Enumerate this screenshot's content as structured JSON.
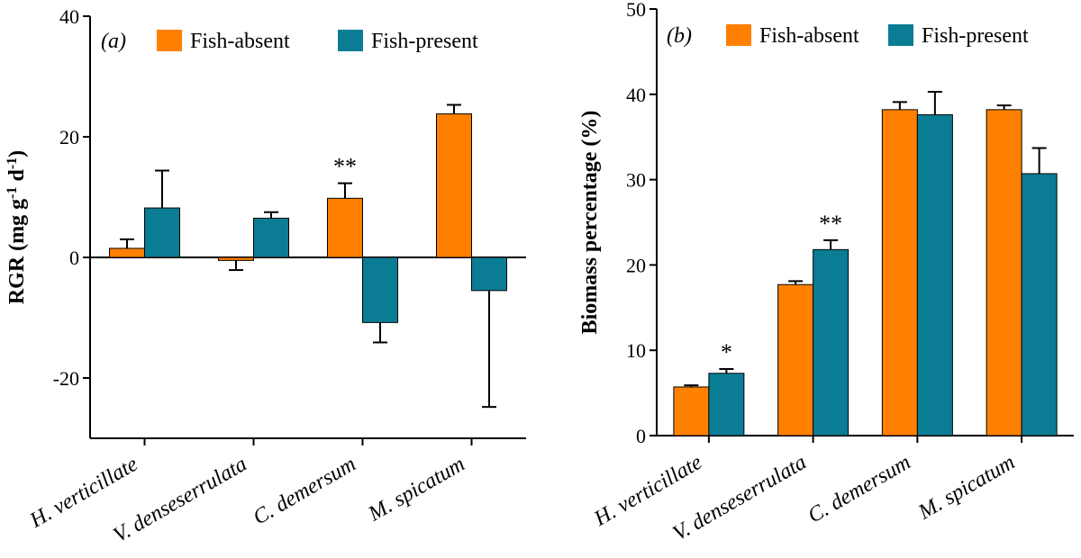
{
  "chart_data": [
    {
      "type": "bar",
      "panel": "(a)",
      "ylabel": "RGR (mg g-1 d-1)",
      "ylabel_parts": [
        "RGR (mg g",
        "-1",
        " d",
        "-1",
        ")"
      ],
      "ylim": [
        -30,
        40
      ],
      "yticks": [
        -20,
        0,
        20,
        40
      ],
      "categories": [
        "H. verticillate",
        "V. denseserrulata",
        "C. demersum",
        "M. spicatum"
      ],
      "series": [
        {
          "name": "Fish-absent",
          "color": "#ff8000",
          "values": [
            1.5,
            -0.5,
            9.8,
            23.8
          ],
          "errors": [
            1.5,
            1.6,
            2.5,
            1.5
          ]
        },
        {
          "name": "Fish-present",
          "color": "#0a7d94",
          "values": [
            8.2,
            6.5,
            -10.8,
            -5.5
          ],
          "errors": [
            6.2,
            1.0,
            3.3,
            19.3
          ]
        }
      ],
      "annotations": [
        {
          "category": 2,
          "series": 0,
          "text": "**"
        }
      ]
    },
    {
      "type": "bar",
      "panel": "(b)",
      "ylabel": "Biomass percentage (%)",
      "ylim": [
        0,
        50
      ],
      "yticks": [
        0,
        10,
        20,
        30,
        40,
        50
      ],
      "categories": [
        "H. verticillate",
        "V. denseserrulata",
        "C. demersum",
        "M. spicatum"
      ],
      "series": [
        {
          "name": "Fish-absent",
          "color": "#ff8000",
          "values": [
            5.7,
            17.7,
            38.2,
            38.2
          ],
          "errors": [
            0.2,
            0.4,
            0.9,
            0.5
          ]
        },
        {
          "name": "Fish-present",
          "color": "#0a7d94",
          "values": [
            7.3,
            21.8,
            37.6,
            30.7
          ],
          "errors": [
            0.5,
            1.1,
            2.7,
            3.0
          ]
        }
      ],
      "annotations": [
        {
          "category": 0,
          "series": 1,
          "text": "*"
        },
        {
          "category": 1,
          "series": 1,
          "text": "**"
        }
      ]
    }
  ]
}
